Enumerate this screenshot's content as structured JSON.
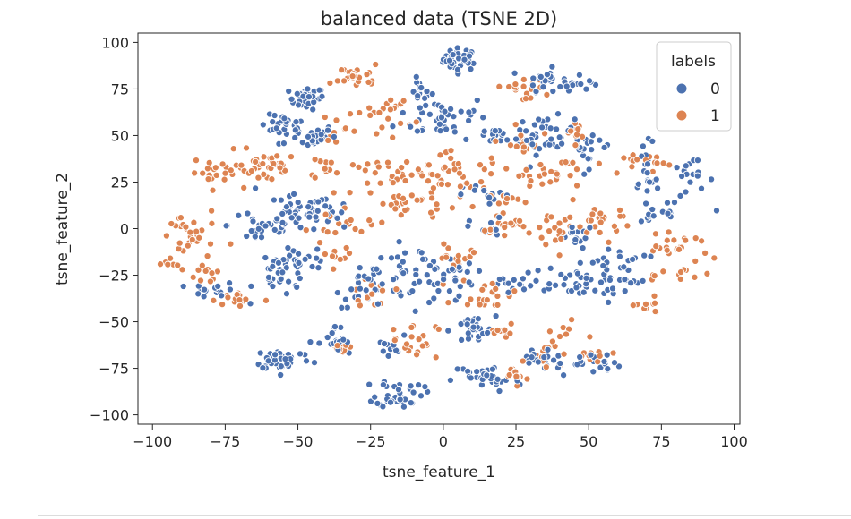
{
  "colors": {
    "series_0": "#4c72b0",
    "series_1": "#dd8452",
    "marker_edge": "#ffffff",
    "axis": "#262626",
    "legend_border": "#cccccc"
  },
  "chart_data": {
    "type": "scatter",
    "title": "balanced data (TSNE 2D)",
    "xlabel": "tsne_feature_1",
    "ylabel": "tsne_feature_2",
    "xlim": [
      -105,
      102
    ],
    "ylim": [
      -105,
      105
    ],
    "xticks": [
      -100,
      -75,
      -50,
      -25,
      0,
      25,
      50,
      75,
      100
    ],
    "xtick_labels": [
      "−100",
      "−75",
      "−50",
      "−25",
      "0",
      "25",
      "50",
      "75",
      "100"
    ],
    "yticks": [
      -100,
      -75,
      -50,
      -25,
      0,
      25,
      50,
      75,
      100
    ],
    "ytick_labels": [
      "−100",
      "−75",
      "−50",
      "−25",
      "0",
      "25",
      "50",
      "75",
      "100"
    ],
    "grid": false,
    "legend": {
      "title": "labels",
      "placement": "top-right",
      "entries": [
        "0",
        "1"
      ]
    },
    "series": [
      {
        "name": "0",
        "color": "#4c72b0",
        "clusters": [
          {
            "cx": 6,
            "cy": 91,
            "sx": 3,
            "sy": 3,
            "n": 40
          },
          {
            "cx": -47,
            "cy": 70,
            "sx": 3,
            "sy": 3,
            "n": 30
          },
          {
            "cx": -8,
            "cy": 74,
            "sx": 2,
            "sy": 3,
            "n": 15
          },
          {
            "cx": -55,
            "cy": 55,
            "sx": 4,
            "sy": 3,
            "n": 20
          },
          {
            "cx": -47,
            "cy": 50,
            "sx": 5,
            "sy": 3,
            "n": 30
          },
          {
            "cx": 0,
            "cy": 60,
            "sx": 8,
            "sy": 6,
            "n": 40
          },
          {
            "cx": 35,
            "cy": 80,
            "sx": 3,
            "sy": 3,
            "n": 25
          },
          {
            "cx": 47,
            "cy": 78,
            "sx": 3,
            "sy": 2,
            "n": 12
          },
          {
            "cx": 18,
            "cy": 50,
            "sx": 5,
            "sy": 3,
            "n": 20
          },
          {
            "cx": 35,
            "cy": 50,
            "sx": 5,
            "sy": 5,
            "n": 35
          },
          {
            "cx": 50,
            "cy": 45,
            "sx": 4,
            "sy": 6,
            "n": 20
          },
          {
            "cx": 70,
            "cy": 25,
            "sx": 2,
            "sy": 10,
            "n": 25
          },
          {
            "cx": 85,
            "cy": 25,
            "sx": 4,
            "sy": 6,
            "n": 20
          },
          {
            "cx": 75,
            "cy": 7,
            "sx": 3,
            "sy": 2,
            "n": 8
          },
          {
            "cx": -62,
            "cy": 2,
            "sx": 6,
            "sy": 6,
            "n": 30
          },
          {
            "cx": -50,
            "cy": 8,
            "sx": 6,
            "sy": 5,
            "n": 35
          },
          {
            "cx": -40,
            "cy": 7,
            "sx": 4,
            "sy": 4,
            "n": 15
          },
          {
            "cx": -55,
            "cy": -25,
            "sx": 5,
            "sy": 6,
            "n": 35
          },
          {
            "cx": -78,
            "cy": -33,
            "sx": 4,
            "sy": 2,
            "n": 15
          },
          {
            "cx": -50,
            "cy": -15,
            "sx": 5,
            "sy": 3,
            "n": 15
          },
          {
            "cx": -25,
            "cy": -30,
            "sx": 6,
            "sy": 6,
            "n": 30
          },
          {
            "cx": -10,
            "cy": -25,
            "sx": 6,
            "sy": 8,
            "n": 35
          },
          {
            "cx": 3,
            "cy": -25,
            "sx": 4,
            "sy": 5,
            "n": 20
          },
          {
            "cx": 10,
            "cy": -55,
            "sx": 4,
            "sy": 4,
            "n": 25
          },
          {
            "cx": 15,
            "cy": -80,
            "sx": 6,
            "sy": 4,
            "n": 35
          },
          {
            "cx": -55,
            "cy": -70,
            "sx": 5,
            "sy": 3,
            "n": 40
          },
          {
            "cx": -37,
            "cy": -62,
            "sx": 3,
            "sy": 5,
            "n": 20
          },
          {
            "cx": -15,
            "cy": -88,
            "sx": 4,
            "sy": 4,
            "n": 40
          },
          {
            "cx": -20,
            "cy": -65,
            "sx": 3,
            "sy": 3,
            "n": 10
          },
          {
            "cx": 45,
            "cy": -30,
            "sx": 10,
            "sy": 5,
            "n": 40
          },
          {
            "cx": 58,
            "cy": -20,
            "sx": 6,
            "sy": 5,
            "n": 25
          },
          {
            "cx": 45,
            "cy": -72,
            "sx": 8,
            "sy": 3,
            "n": 30
          },
          {
            "cx": 15,
            "cy": 0,
            "sx": 3,
            "sy": 3,
            "n": 12
          },
          {
            "cx": 25,
            "cy": -30,
            "sx": 5,
            "sy": 3,
            "n": 15
          },
          {
            "cx": 15,
            "cy": 18,
            "sx": 4,
            "sy": 3,
            "n": 12
          },
          {
            "cx": 47,
            "cy": -5,
            "sx": 4,
            "sy": 3,
            "n": 12
          },
          {
            "cx": 33,
            "cy": -70,
            "sx": 3,
            "sy": 3,
            "n": 12
          }
        ]
      },
      {
        "name": "1",
        "color": "#dd8452",
        "clusters": [
          {
            "cx": -30,
            "cy": 82,
            "sx": 4,
            "sy": 3,
            "n": 25
          },
          {
            "cx": -20,
            "cy": 62,
            "sx": 5,
            "sy": 5,
            "n": 20
          },
          {
            "cx": -35,
            "cy": 55,
            "sx": 3,
            "sy": 4,
            "n": 10
          },
          {
            "cx": 27,
            "cy": 75,
            "sx": 4,
            "sy": 3,
            "n": 18
          },
          {
            "cx": 27,
            "cy": 45,
            "sx": 3,
            "sy": 5,
            "n": 15
          },
          {
            "cx": 45,
            "cy": 52,
            "sx": 3,
            "sy": 3,
            "n": 12
          },
          {
            "cx": -77,
            "cy": 30,
            "sx": 5,
            "sy": 3,
            "n": 20
          },
          {
            "cx": -67,
            "cy": 35,
            "sx": 3,
            "sy": 5,
            "n": 15
          },
          {
            "cx": -57,
            "cy": 33,
            "sx": 4,
            "sy": 4,
            "n": 20
          },
          {
            "cx": -40,
            "cy": 33,
            "sx": 3,
            "sy": 2,
            "n": 10
          },
          {
            "cx": -15,
            "cy": 28,
            "sx": 8,
            "sy": 5,
            "n": 35
          },
          {
            "cx": 5,
            "cy": 30,
            "sx": 10,
            "sy": 5,
            "n": 35
          },
          {
            "cx": -10,
            "cy": 12,
            "sx": 10,
            "sy": 4,
            "n": 25
          },
          {
            "cx": 20,
            "cy": 15,
            "sx": 3,
            "sy": 3,
            "n": 10
          },
          {
            "cx": 30,
            "cy": 30,
            "sx": 3,
            "sy": 3,
            "n": 10
          },
          {
            "cx": 40,
            "cy": 30,
            "sx": 3,
            "sy": 5,
            "n": 15
          },
          {
            "cx": 25,
            "cy": 0,
            "sx": 6,
            "sy": 3,
            "n": 20
          },
          {
            "cx": 40,
            "cy": 0,
            "sx": 4,
            "sy": 6,
            "n": 20
          },
          {
            "cx": 55,
            "cy": 5,
            "sx": 5,
            "sy": 5,
            "n": 20
          },
          {
            "cx": 80,
            "cy": -10,
            "sx": 6,
            "sy": 3,
            "n": 20
          },
          {
            "cx": 85,
            "cy": -25,
            "sx": 5,
            "sy": 4,
            "n": 12
          },
          {
            "cx": 70,
            "cy": -42,
            "sx": 3,
            "sy": 2,
            "n": 10
          },
          {
            "cx": -88,
            "cy": -5,
            "sx": 5,
            "sy": 8,
            "n": 30
          },
          {
            "cx": -95,
            "cy": -19,
            "sx": 2,
            "sy": 1,
            "n": 5
          },
          {
            "cx": -82,
            "cy": -25,
            "sx": 3,
            "sy": 4,
            "n": 12
          },
          {
            "cx": -70,
            "cy": -38,
            "sx": 4,
            "sy": 3,
            "n": 15
          },
          {
            "cx": -35,
            "cy": 2,
            "sx": 5,
            "sy": 3,
            "n": 15
          },
          {
            "cx": -38,
            "cy": -15,
            "sx": 3,
            "sy": 3,
            "n": 10
          },
          {
            "cx": -25,
            "cy": -35,
            "sx": 4,
            "sy": 3,
            "n": 12
          },
          {
            "cx": 5,
            "cy": -15,
            "sx": 4,
            "sy": 4,
            "n": 15
          },
          {
            "cx": 15,
            "cy": -35,
            "sx": 5,
            "sy": 4,
            "n": 20
          },
          {
            "cx": -10,
            "cy": -60,
            "sx": 4,
            "sy": 5,
            "n": 20
          },
          {
            "cx": -35,
            "cy": -62,
            "sx": 2,
            "sy": 3,
            "n": 10
          },
          {
            "cx": 25,
            "cy": -80,
            "sx": 3,
            "sy": 3,
            "n": 10
          },
          {
            "cx": 35,
            "cy": -65,
            "sx": 3,
            "sy": 4,
            "n": 12
          },
          {
            "cx": 50,
            "cy": -70,
            "sx": 4,
            "sy": 3,
            "n": 10
          },
          {
            "cx": 63,
            "cy": 35,
            "sx": 4,
            "sy": 3,
            "n": 10
          },
          {
            "cx": 72,
            "cy": 35,
            "sx": 2,
            "sy": 3,
            "n": 6
          },
          {
            "cx": 20,
            "cy": -55,
            "sx": 3,
            "sy": 3,
            "n": 10
          },
          {
            "cx": 42,
            "cy": -55,
            "sx": 3,
            "sy": 3,
            "n": 8
          }
        ]
      }
    ]
  }
}
